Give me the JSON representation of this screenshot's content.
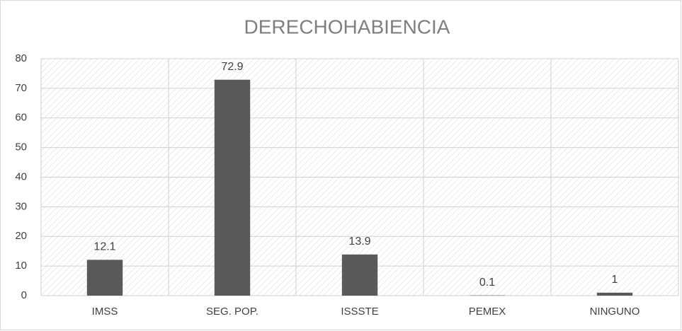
{
  "chart_data": {
    "type": "bar",
    "title": "DERECHOHABIENCIA",
    "categories": [
      "IMSS",
      "SEG. POP.",
      "ISSSTE",
      "PEMEX",
      "NINGUNO"
    ],
    "values": [
      12.1,
      72.9,
      13.9,
      0.1,
      1
    ],
    "color": "#595959",
    "ylim": [
      0,
      80
    ],
    "yticks": [
      0,
      10,
      20,
      30,
      40,
      50,
      60,
      70,
      80
    ],
    "grid": true
  }
}
